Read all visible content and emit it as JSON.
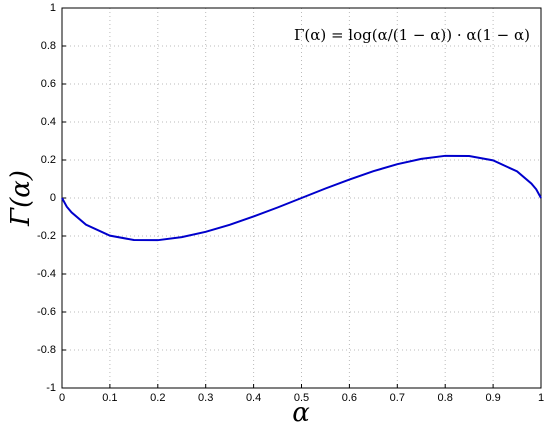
{
  "chart_data": {
    "type": "line",
    "annotation": "Γ(α) = log(α/(1 − α)) · α(1 − α)",
    "xlabel": "α",
    "ylabel": "Γ(α)",
    "x": [
      0,
      0.01,
      0.02,
      0.05,
      0.1,
      0.15,
      0.2,
      0.25,
      0.3,
      0.35,
      0.4,
      0.45,
      0.5,
      0.55,
      0.6,
      0.65,
      0.7,
      0.75,
      0.8,
      0.85,
      0.9,
      0.95,
      0.98,
      0.99,
      1
    ],
    "values": [
      0,
      -0.046,
      -0.076,
      -0.14,
      -0.198,
      -0.221,
      -0.222,
      -0.206,
      -0.178,
      -0.141,
      -0.097,
      -0.05,
      0,
      0.05,
      0.097,
      0.141,
      0.178,
      0.206,
      0.222,
      0.221,
      0.198,
      0.14,
      0.076,
      0.046,
      0
    ],
    "color": "#0000cc",
    "xlim": [
      0,
      1
    ],
    "ylim": [
      -1,
      1
    ],
    "xticks": [
      0,
      0.1,
      0.2,
      0.3,
      0.4,
      0.5,
      0.6,
      0.7,
      0.8,
      0.9,
      1
    ],
    "yticks": [
      -1,
      -0.8,
      -0.6,
      -0.4,
      -0.2,
      0,
      0.2,
      0.4,
      0.6,
      0.8,
      1
    ],
    "grid": true
  }
}
